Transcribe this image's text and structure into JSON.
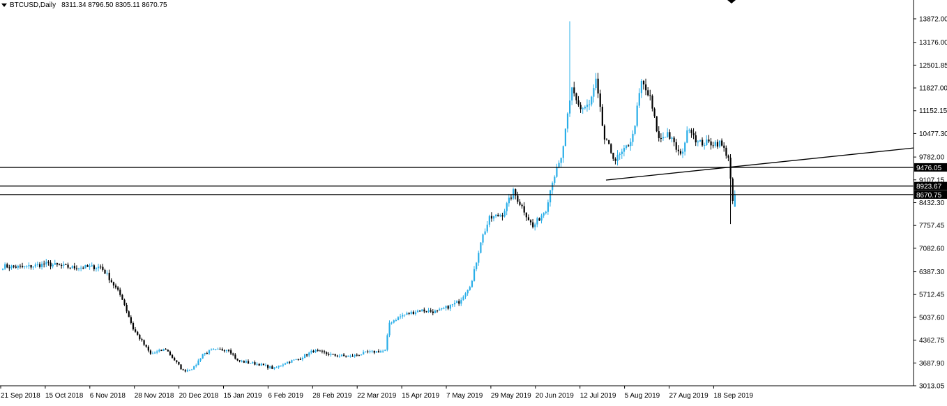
{
  "header": {
    "symbol": "BTCUSD,Daily",
    "ohlc": "8311.34 8796.50 8305.11 8670.75"
  },
  "colors": {
    "bull": "#29aee8",
    "bear": "#000000",
    "line": "#000000",
    "axis": "#000000",
    "background": "#ffffff",
    "label_bg": "#000000",
    "label_text": "#ffffff"
  },
  "icons": {
    "top_marker": "down-triangle-icon"
  },
  "chart_data": {
    "type": "candlestick",
    "title": "",
    "xlabel": "",
    "ylabel": "",
    "ylim": [
      3013.05,
      14250
    ],
    "y_ticks": [
      "13872.00",
      "13176.00",
      "12501.85",
      "11827.00",
      "11152.15",
      "10477.30",
      "9782.00",
      "9107.15",
      "8432.30",
      "7757.45",
      "7082.60",
      "6387.30",
      "5712.45",
      "5037.60",
      "4362.75",
      "3687.90",
      "3013.05"
    ],
    "x_labels": [
      "21 Sep 2018",
      "15 Oct 2018",
      "6 Nov 2018",
      "28 Nov 2018",
      "20 Dec 2018",
      "15 Jan 2019",
      "6 Feb 2019",
      "28 Feb 2019",
      "22 Mar 2019",
      "15 Apr 2019",
      "7 May 2019",
      "29 May 2019",
      "20 Jun 2019",
      "12 Jul 2019",
      "5 Aug 2019",
      "27 Aug 2019",
      "18 Sep 2019"
    ],
    "anchors": [
      {
        "i": 0,
        "p": 6550
      },
      {
        "i": 10,
        "p": 6520
      },
      {
        "i": 20,
        "p": 6620
      },
      {
        "i": 32,
        "p": 6510
      },
      {
        "i": 45,
        "p": 6530
      },
      {
        "i": 48,
        "p": 6300
      },
      {
        "i": 55,
        "p": 5600
      },
      {
        "i": 60,
        "p": 4700
      },
      {
        "i": 68,
        "p": 3950
      },
      {
        "i": 75,
        "p": 4100
      },
      {
        "i": 83,
        "p": 3450
      },
      {
        "i": 88,
        "p": 3550
      },
      {
        "i": 92,
        "p": 3950
      },
      {
        "i": 96,
        "p": 4050
      },
      {
        "i": 104,
        "p": 4100
      },
      {
        "i": 108,
        "p": 3750
      },
      {
        "i": 118,
        "p": 3650
      },
      {
        "i": 125,
        "p": 3520
      },
      {
        "i": 130,
        "p": 3700
      },
      {
        "i": 136,
        "p": 3800
      },
      {
        "i": 143,
        "p": 4050
      },
      {
        "i": 152,
        "p": 3920
      },
      {
        "i": 160,
        "p": 3880
      },
      {
        "i": 168,
        "p": 4000
      },
      {
        "i": 176,
        "p": 4050
      },
      {
        "i": 178,
        "p": 4880
      },
      {
        "i": 184,
        "p": 5100
      },
      {
        "i": 192,
        "p": 5250
      },
      {
        "i": 200,
        "p": 5200
      },
      {
        "i": 210,
        "p": 5500
      },
      {
        "i": 216,
        "p": 6100
      },
      {
        "i": 220,
        "p": 7300
      },
      {
        "i": 224,
        "p": 7950
      },
      {
        "i": 230,
        "p": 8100
      },
      {
        "i": 235,
        "p": 8750
      },
      {
        "i": 240,
        "p": 8200
      },
      {
        "i": 244,
        "p": 7700
      },
      {
        "i": 250,
        "p": 8250
      },
      {
        "i": 253,
        "p": 9100
      },
      {
        "i": 257,
        "p": 9700
      },
      {
        "i": 262,
        "p": 11800
      },
      {
        "i": 266,
        "p": 11200
      },
      {
        "i": 270,
        "p": 11300
      },
      {
        "i": 273,
        "p": 12000
      },
      {
        "i": 277,
        "p": 10300
      },
      {
        "i": 282,
        "p": 9700
      },
      {
        "i": 286,
        "p": 9950
      },
      {
        "i": 290,
        "p": 10400
      },
      {
        "i": 294,
        "p": 12000
      },
      {
        "i": 298,
        "p": 11500
      },
      {
        "i": 302,
        "p": 10300
      },
      {
        "i": 306,
        "p": 10500
      },
      {
        "i": 312,
        "p": 9800
      },
      {
        "i": 316,
        "p": 10700
      },
      {
        "i": 320,
        "p": 10200
      },
      {
        "i": 326,
        "p": 10200
      },
      {
        "i": 330,
        "p": 10200
      },
      {
        "i": 334,
        "p": 9800
      },
      {
        "i": 336,
        "p": 8400
      },
      {
        "i": 337,
        "p": 8671
      }
    ],
    "horizontal_levels": [
      {
        "price": 9476.05,
        "label": "9476.05"
      },
      {
        "price": 8923.67,
        "label": "8923.67"
      },
      {
        "price": 8670.75,
        "label": "8670.75"
      }
    ],
    "trendline": {
      "from": {
        "i": 278,
        "p": 9100
      },
      "to": {
        "i": 374,
        "p": 10050
      }
    }
  }
}
